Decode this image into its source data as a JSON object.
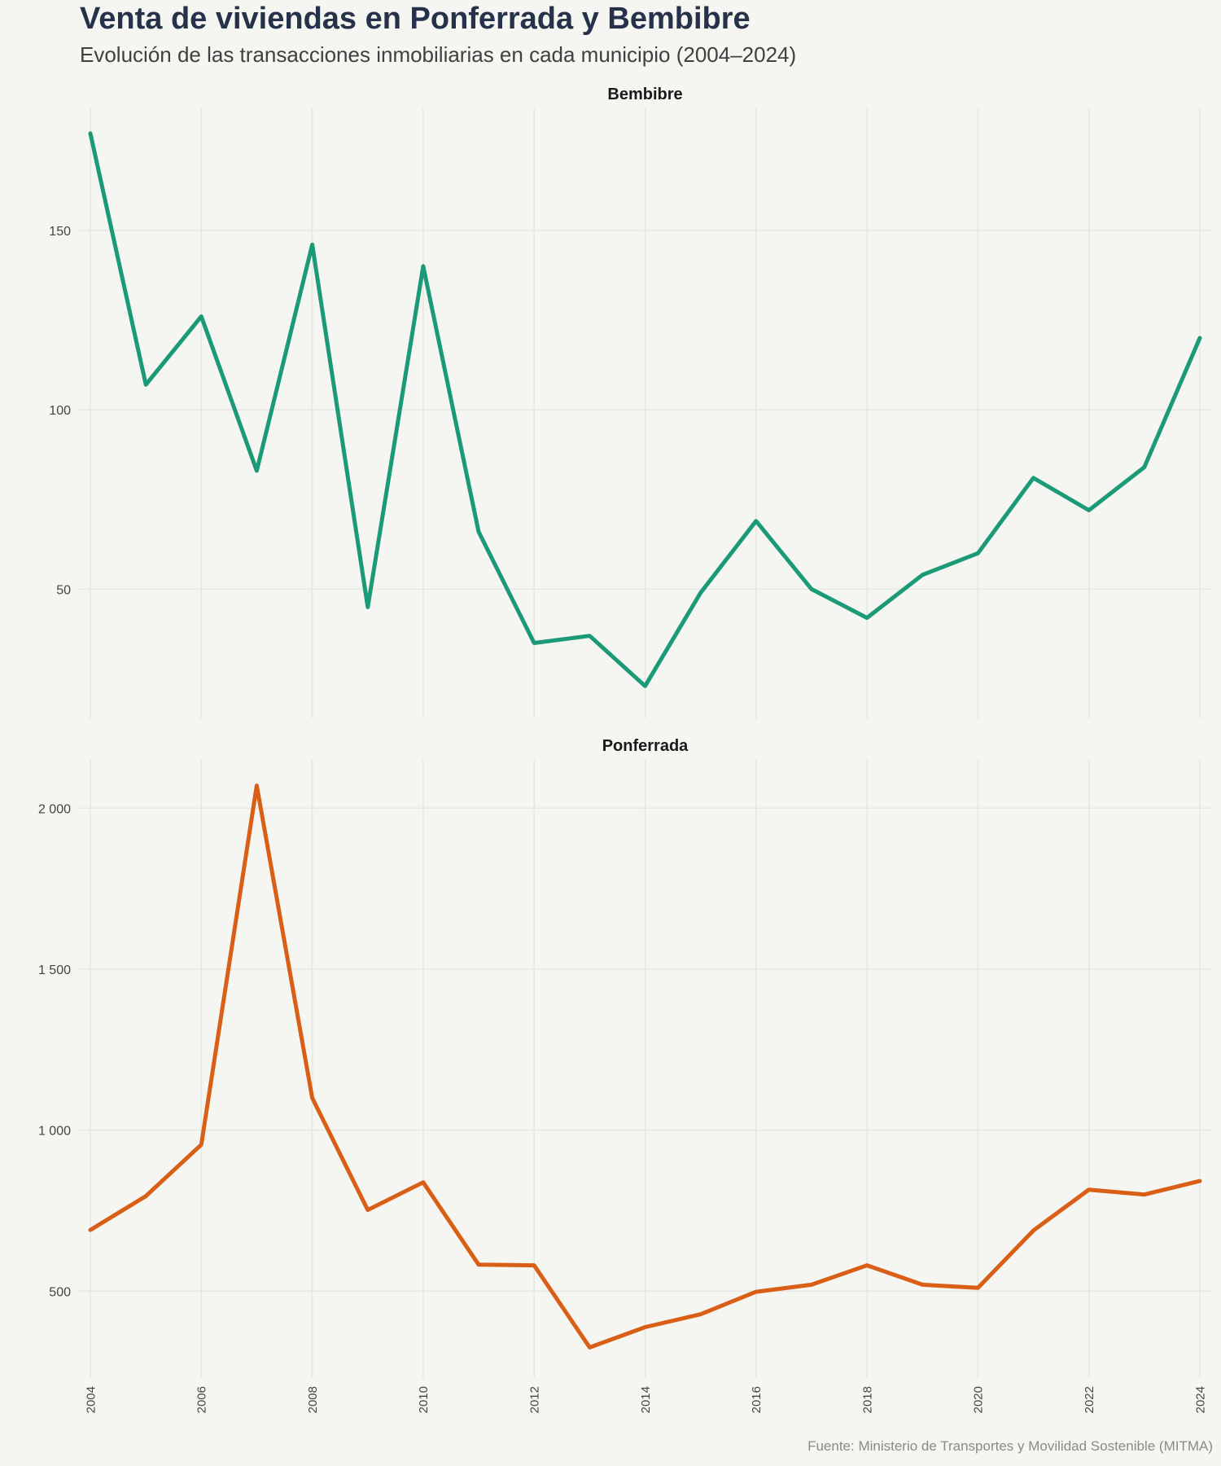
{
  "header": {
    "title": "Venta de viviendas en Ponferrada y Bembibre",
    "subtitle": "Evolución de las transacciones inmobiliarias en cada municipio (2004–2024)",
    "source": "Fuente: Ministerio de Transportes y Movilidad Sostenible (MITMA)"
  },
  "colors": {
    "background": "#f5f5f1",
    "grid": "#e6e6e2",
    "title": "#26324a",
    "bembibre_line": "#1b9a77",
    "ponferrada_line": "#d95f16"
  },
  "chart_data": [
    {
      "type": "line",
      "panel_title": "Bembibre",
      "color": "#1b9a77",
      "x": [
        2004,
        2005,
        2006,
        2007,
        2008,
        2009,
        2010,
        2011,
        2012,
        2013,
        2014,
        2015,
        2016,
        2017,
        2018,
        2019,
        2020,
        2021,
        2022,
        2023,
        2024
      ],
      "values": [
        177,
        107,
        126,
        83,
        146,
        45,
        140,
        66,
        35,
        37,
        23,
        49,
        69,
        50,
        42,
        54,
        60,
        81,
        72,
        84,
        120
      ],
      "ylim": [
        14,
        184
      ],
      "yticks": [
        50,
        100,
        150
      ],
      "ytick_labels": [
        "50",
        "100",
        "150"
      ],
      "grid": true
    },
    {
      "type": "line",
      "panel_title": "Ponferrada",
      "color": "#d95f16",
      "x": [
        2004,
        2005,
        2006,
        2007,
        2008,
        2009,
        2010,
        2011,
        2012,
        2013,
        2014,
        2015,
        2016,
        2017,
        2018,
        2019,
        2020,
        2021,
        2022,
        2023,
        2024
      ],
      "values": [
        690,
        795,
        955,
        2070,
        1100,
        752,
        838,
        582,
        580,
        325,
        388,
        428,
        498,
        520,
        580,
        520,
        510,
        688,
        815,
        800,
        842
      ],
      "ylim": [
        230,
        2150
      ],
      "yticks": [
        500,
        1000,
        1500,
        2000
      ],
      "ytick_labels": [
        "500",
        "1 000",
        "1 500",
        "2 000"
      ],
      "grid": true
    }
  ],
  "x_axis": {
    "ticks": [
      2004,
      2006,
      2008,
      2010,
      2012,
      2014,
      2016,
      2018,
      2020,
      2022,
      2024
    ],
    "tick_labels": [
      "2004",
      "2006",
      "2008",
      "2010",
      "2012",
      "2014",
      "2016",
      "2018",
      "2020",
      "2022",
      "2024"
    ]
  }
}
